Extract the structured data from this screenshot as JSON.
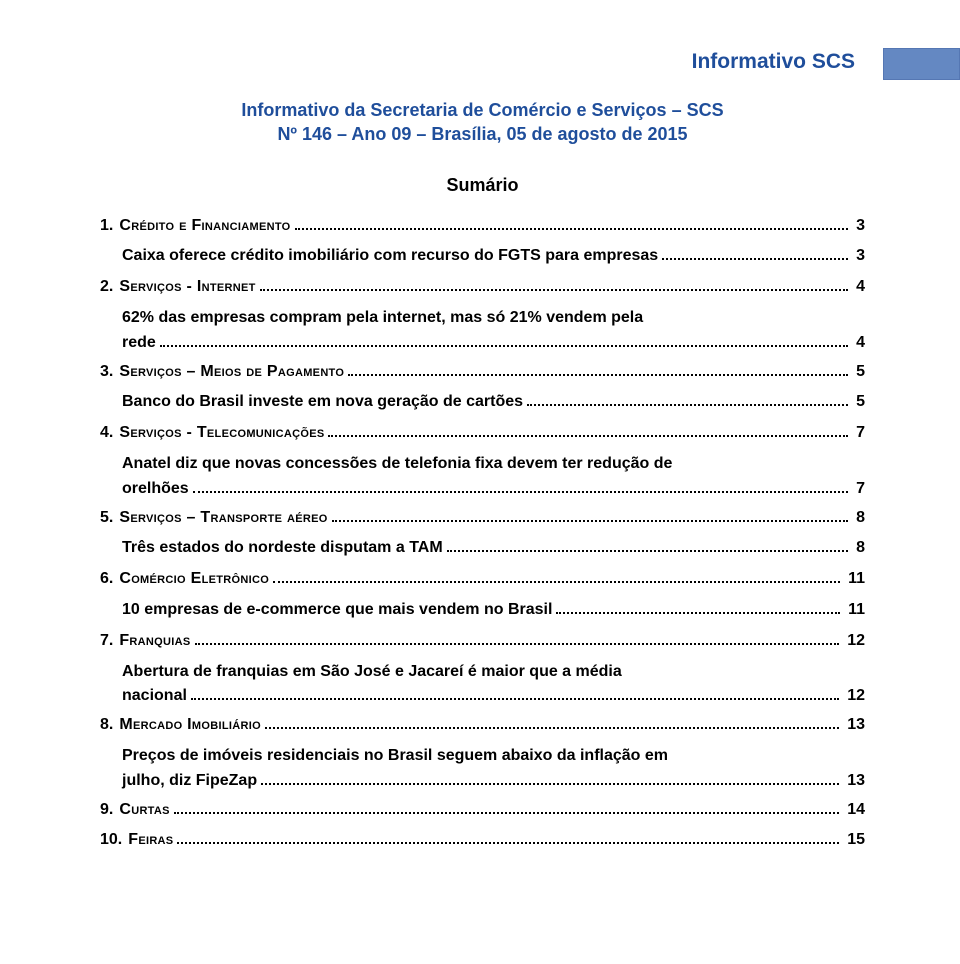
{
  "header": {
    "title": "Informativo SCS",
    "subtitle_line1": "Informativo da Secretaria de Comércio e Serviços – SCS",
    "subtitle_line2": "Nº 146 – Ano 09 – Brasília, 05 de agosto de 2015",
    "summary_label": "Sumário"
  },
  "colors": {
    "heading": "#1f4e9b",
    "header_bar": "#6488c2",
    "text": "#000000",
    "background": "#ffffff"
  },
  "toc": [
    {
      "num": "1.",
      "label": "Crédito e Financiamento",
      "page": "3",
      "sub": [
        {
          "text": "Caixa oferece crédito imobiliário com recurso do FGTS para empresas",
          "page": "3",
          "multiline": false
        }
      ]
    },
    {
      "num": "2.",
      "label": "Serviços - Internet",
      "page": "4",
      "sub": [
        {
          "text_first": "62% das empresas compram pela internet, mas só 21% vendem pela",
          "text_last": "rede",
          "page": "4",
          "multiline": true
        }
      ]
    },
    {
      "num": "3.",
      "label": "Serviços – Meios de Pagamento",
      "page": "5",
      "sub": [
        {
          "text": "Banco do Brasil investe em nova geração de cartões",
          "page": "5",
          "multiline": false
        }
      ]
    },
    {
      "num": "4.",
      "label": "Serviços - Telecomunicações",
      "page": "7",
      "sub": [
        {
          "text_first": "Anatel diz que novas concessões de telefonia fixa devem ter redução de",
          "text_last": "orelhões",
          "page": "7",
          "multiline": true
        }
      ]
    },
    {
      "num": "5.",
      "label": "Serviços – Transporte aéreo",
      "page": "8",
      "sub": [
        {
          "text": "Três estados do nordeste disputam a TAM",
          "page": "8",
          "multiline": false
        }
      ]
    },
    {
      "num": "6.",
      "label": "Comércio Eletrônico",
      "page": "11",
      "sub": [
        {
          "text": "10 empresas de e-commerce que mais vendem no Brasil",
          "page": "11",
          "multiline": false
        }
      ]
    },
    {
      "num": "7.",
      "label": "Franquias",
      "page": "12",
      "sub": [
        {
          "text_first": "Abertura de franquias em São José e Jacareí é maior que a média",
          "text_last": "nacional",
          "page": "12",
          "multiline": true
        }
      ]
    },
    {
      "num": "8.",
      "label": "Mercado Imobiliário",
      "page": "13",
      "sub": [
        {
          "text_first": "Preços de imóveis residenciais no Brasil seguem abaixo da inflação em",
          "text_last": "julho, diz FipeZap",
          "page": "13",
          "multiline": true
        }
      ]
    },
    {
      "num": "9.",
      "label": "Curtas",
      "page": "14",
      "sub": []
    },
    {
      "num": "10.",
      "label": "Feiras",
      "page": "15",
      "sub": []
    }
  ]
}
